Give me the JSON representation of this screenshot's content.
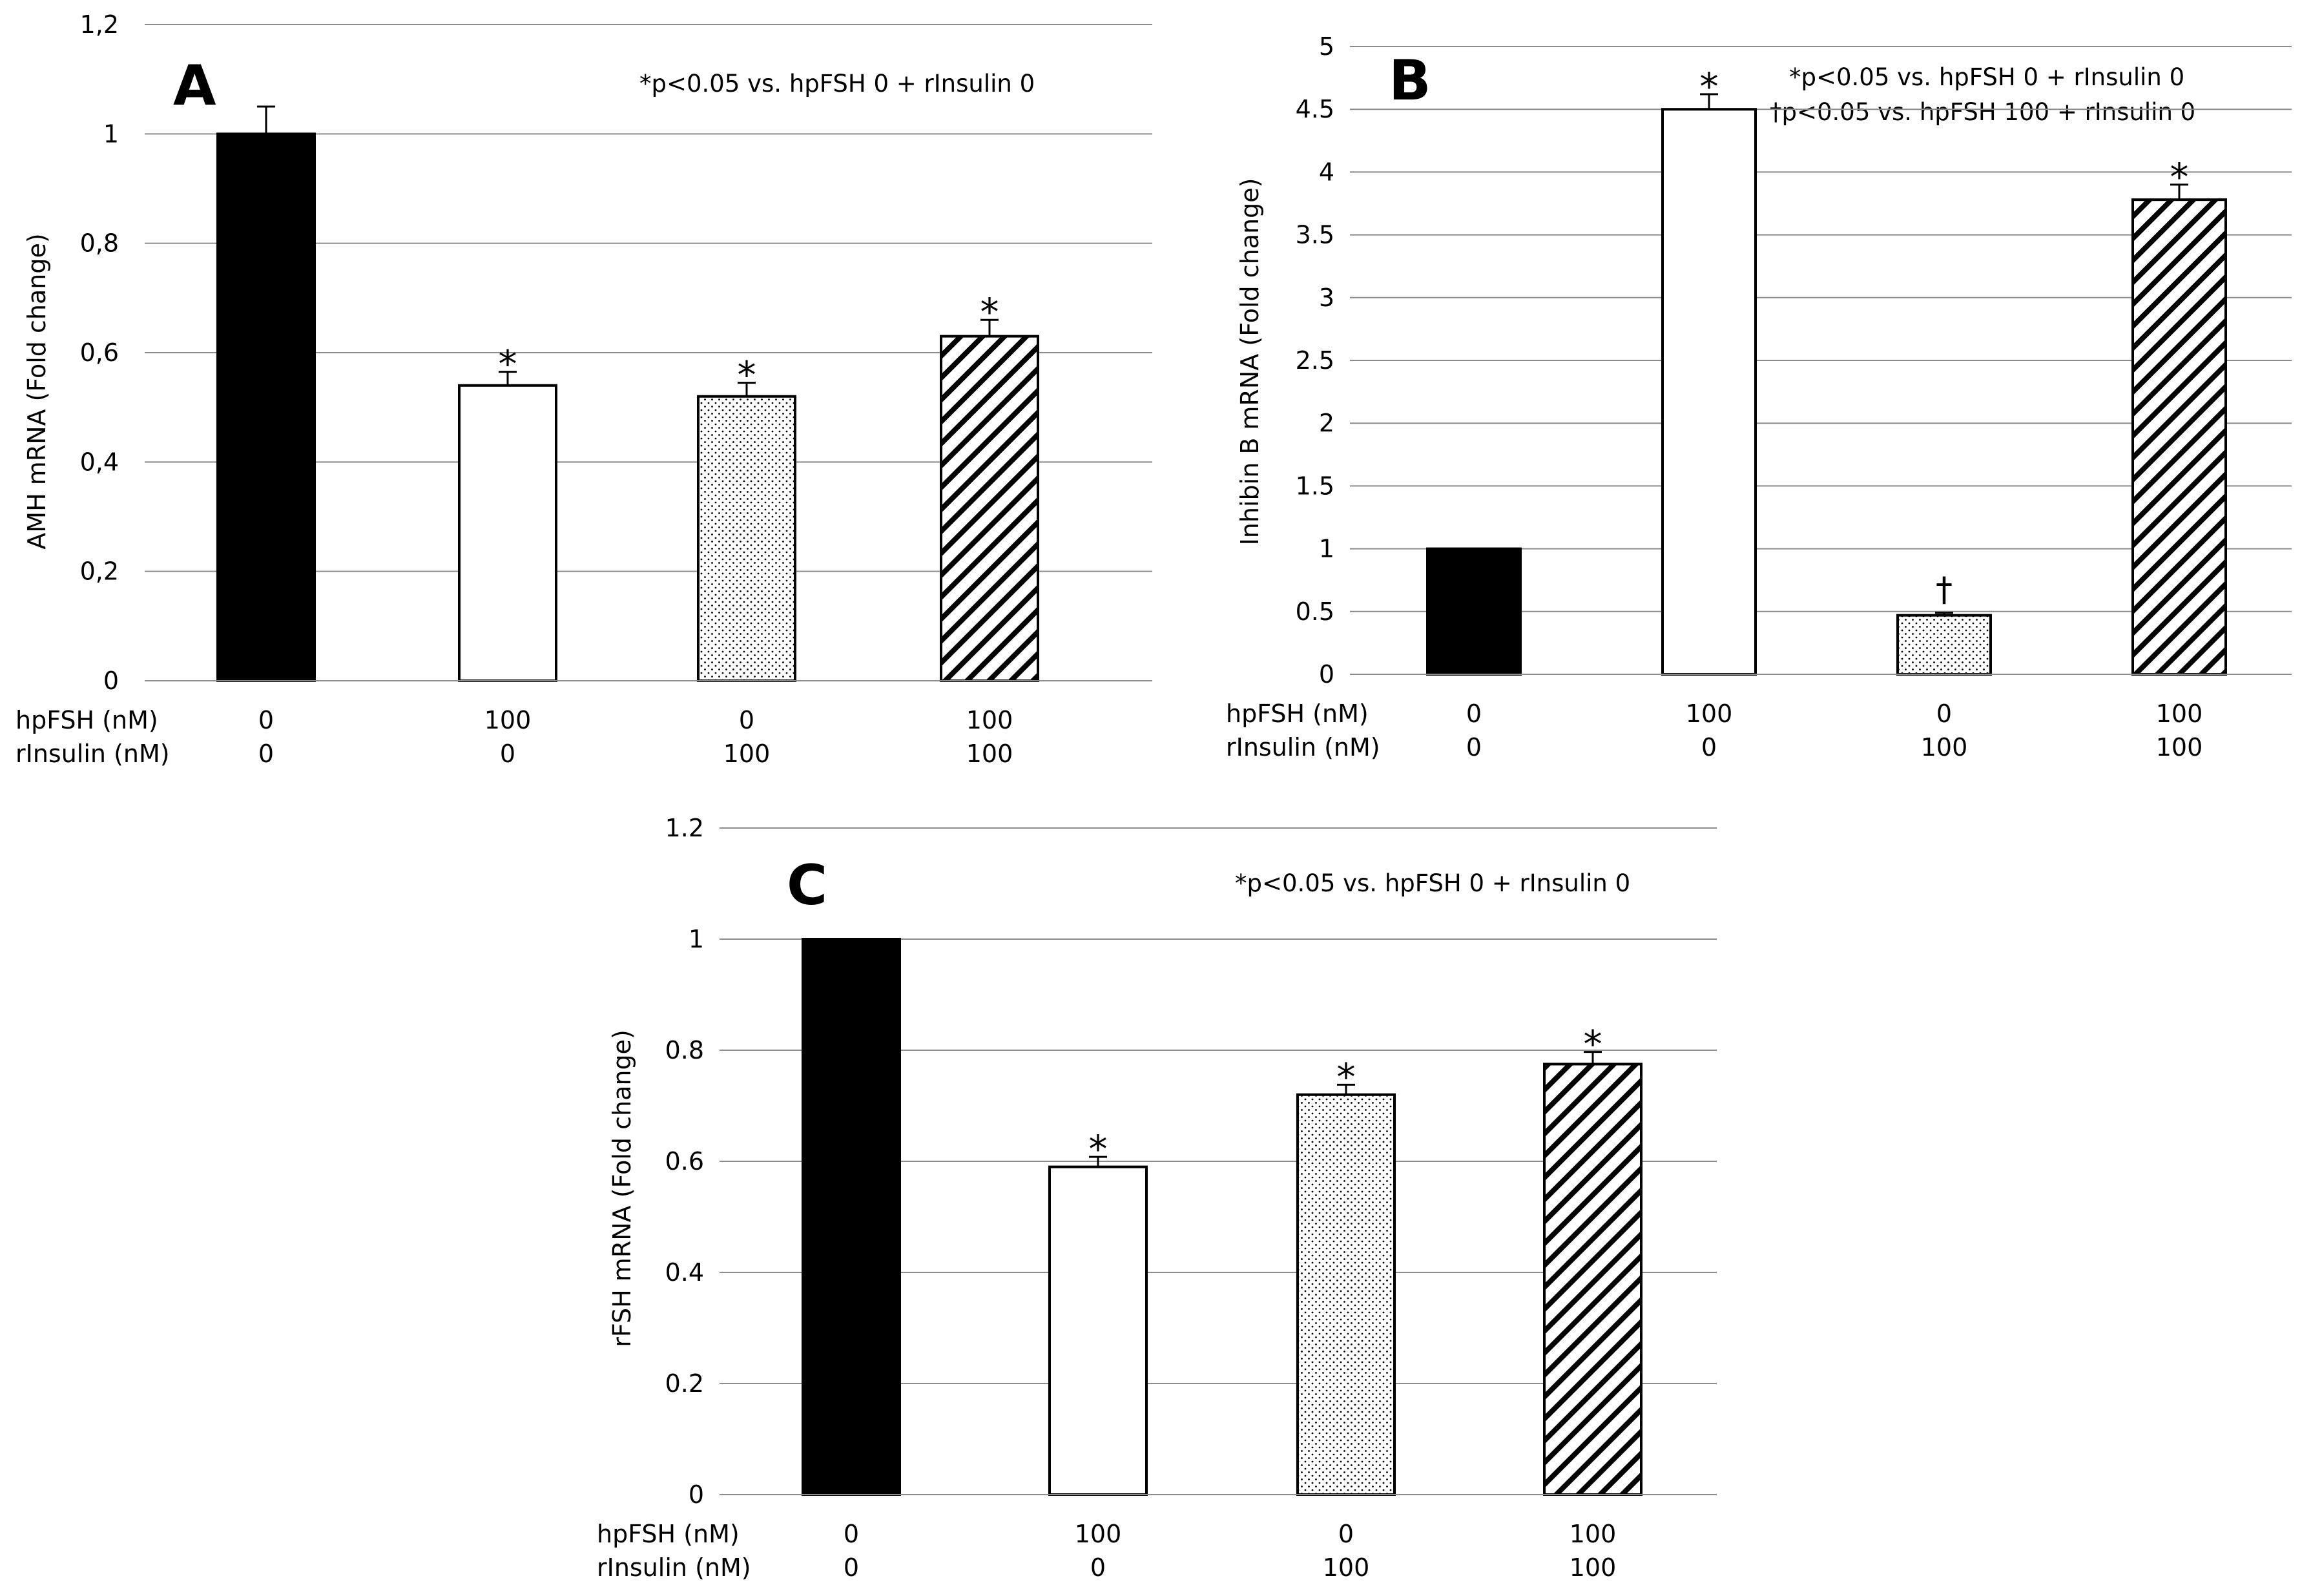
{
  "chart_data": [
    {
      "panel": "A",
      "type": "bar",
      "ylabel": "AMH mRNA (Fold change)",
      "ylim": [
        0,
        1.2
      ],
      "yticks": [
        "0",
        "0,2",
        "0,4",
        "0,6",
        "0,8",
        "1",
        "1,2"
      ],
      "ytick_values": [
        0,
        0.2,
        0.4,
        0.6,
        0.8,
        1.0,
        1.2
      ],
      "values": [
        1.0,
        0.54,
        0.52,
        0.63
      ],
      "errors": [
        0.05,
        0.025,
        0.025,
        0.03
      ],
      "marks": [
        "",
        "*",
        "*",
        "*"
      ],
      "fills": [
        "solid",
        "open",
        "dotted",
        "hatched"
      ],
      "annotations": [
        "*p<0.05 vs. hpFSH 0 + rInsulin 0"
      ],
      "row_labels": [
        "hpFSH (nM)",
        "rInsulin (nM)"
      ],
      "hpfsh": [
        "0",
        "100",
        "0",
        "100"
      ],
      "rinsulin": [
        "0",
        "0",
        "100",
        "100"
      ],
      "grid": true
    },
    {
      "panel": "B",
      "type": "bar",
      "ylabel": "Inhibin B mRNA (Fold change)",
      "ylim": [
        0,
        5
      ],
      "yticks": [
        "0",
        "0.5",
        "1",
        "1.5",
        "2",
        "2.5",
        "3",
        "3.5",
        "4",
        "4.5",
        "5"
      ],
      "ytick_values": [
        0,
        0.5,
        1,
        1.5,
        2,
        2.5,
        3,
        3.5,
        4,
        4.5,
        5
      ],
      "values": [
        1.0,
        4.5,
        0.47,
        3.78
      ],
      "errors": [
        0.0,
        0.12,
        0.02,
        0.12
      ],
      "marks": [
        "",
        "*",
        "†",
        "*"
      ],
      "fills": [
        "solid",
        "open",
        "dotted",
        "hatched"
      ],
      "annotations": [
        "*p<0.05 vs. hpFSH 0 + rInsulin 0",
        "†p<0.05 vs. hpFSH 100 + rInsulin 0"
      ],
      "row_labels": [
        "hpFSH (nM)",
        "rInsulin (nM)"
      ],
      "hpfsh": [
        "0",
        "100",
        "0",
        "100"
      ],
      "rinsulin": [
        "0",
        "0",
        "100",
        "100"
      ],
      "grid": true
    },
    {
      "panel": "C",
      "type": "bar",
      "ylabel": "rFSH mRNA (Fold change)",
      "ylim": [
        0,
        1.2
      ],
      "yticks": [
        "0",
        "0.2",
        "0.4",
        "0.6",
        "0.8",
        "1",
        "1.2"
      ],
      "ytick_values": [
        0,
        0.2,
        0.4,
        0.6,
        0.8,
        1.0,
        1.2
      ],
      "values": [
        1.0,
        0.59,
        0.72,
        0.775
      ],
      "errors": [
        0.0,
        0.018,
        0.018,
        0.022
      ],
      "marks": [
        "",
        "*",
        "*",
        "*"
      ],
      "fills": [
        "solid",
        "open",
        "dotted",
        "hatched"
      ],
      "annotations": [
        "*p<0.05 vs. hpFSH 0 + rInsulin 0"
      ],
      "row_labels": [
        "hpFSH (nM)",
        "rInsulin (nM)"
      ],
      "hpfsh": [
        "0",
        "100",
        "0",
        "100"
      ],
      "rinsulin": [
        "0",
        "0",
        "100",
        "100"
      ],
      "grid": true
    }
  ]
}
